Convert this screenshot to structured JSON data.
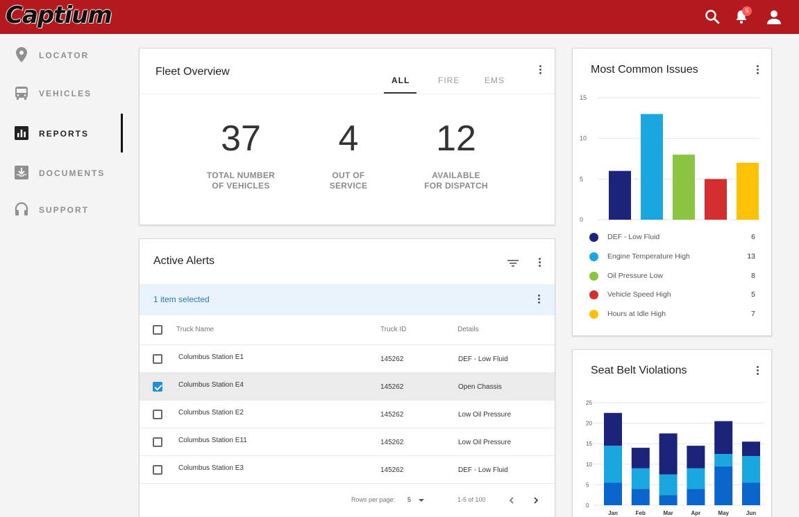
{
  "header": {
    "logo": "Captium",
    "notification_count": "5",
    "icons": [
      "search-icon",
      "bell-icon",
      "user-icon"
    ],
    "brand_color": "#b4191d"
  },
  "sidebar": {
    "items": [
      {
        "label": "LOCATOR",
        "icon": "map-pin-icon",
        "active": false
      },
      {
        "label": "VEHICLES",
        "icon": "bus-icon",
        "active": false
      },
      {
        "label": "REPORTS",
        "icon": "bar-chart-icon",
        "active": true
      },
      {
        "label": "DOCUMENTS",
        "icon": "inbox-icon",
        "active": false
      },
      {
        "label": "SUPPORT",
        "icon": "headset-icon",
        "active": false
      }
    ]
  },
  "fleet_overview": {
    "title": "Fleet Overview",
    "tabs": [
      {
        "label": "ALL",
        "active": true
      },
      {
        "label": "FIRE",
        "active": false
      },
      {
        "label": "EMS",
        "active": false
      }
    ],
    "stats": [
      {
        "value": "37",
        "label_line1": "TOTAL NUMBER",
        "label_line2": "OF VEHICLES"
      },
      {
        "value": "4",
        "label_line1": "OUT OF",
        "label_line2": "SERVICE"
      },
      {
        "value": "12",
        "label_line1": "AVAILABLE",
        "label_line2": "FOR DISPATCH"
      }
    ]
  },
  "active_alerts": {
    "title": "Active Alerts",
    "selected_text": "1 item selected",
    "columns": [
      "Truck Name",
      "Truck ID",
      "Details"
    ],
    "rows": [
      {
        "name": "Columbus Station E1",
        "id": "145262",
        "details": "DEF - Low Fluid",
        "checked": false
      },
      {
        "name": "Columbus Station E4",
        "id": "145262",
        "details": "Open Chassis",
        "checked": true
      },
      {
        "name": "Columbus Station E2",
        "id": "145262",
        "details": "Low Oil Pressure",
        "checked": false
      },
      {
        "name": "Columbus Station E11",
        "id": "145262",
        "details": "Low Oil Pressure",
        "checked": false
      },
      {
        "name": "Columbus Station E3",
        "id": "145262",
        "details": "DEF - Low Fluid",
        "checked": false
      }
    ],
    "pagination": {
      "rows_per_page_label": "Rows per page:",
      "rows_per_page": "5",
      "range": "1-5 of 100"
    }
  },
  "chart_data": [
    {
      "type": "bar",
      "title": "Most Common Issues",
      "categories": [
        "DEF -  Low Fluid",
        "Engine Temperature High",
        "Oil Pressure Low",
        "Vehicle Speed High",
        "Hours at Idle High"
      ],
      "values": [
        6,
        13,
        8,
        5,
        7
      ],
      "colors": [
        "#1c237a",
        "#1aa7e0",
        "#8bc440",
        "#d32f2f",
        "#ffc107"
      ],
      "ylim": [
        0,
        15
      ],
      "yticks": [
        0,
        5,
        10,
        15
      ],
      "grid": true,
      "legend": "bottom"
    },
    {
      "type": "bar",
      "stacked": true,
      "title": "Seat Belt Violations",
      "categories": [
        "Jan",
        "Feb",
        "Mar",
        "Apr",
        "May",
        "Jun"
      ],
      "series": [
        {
          "values": [
            5.5,
            4,
            2.5,
            4,
            9.5,
            5.5
          ],
          "color": "#0a66cc"
        },
        {
          "values": [
            9,
            5,
            5,
            5,
            3,
            6.5
          ],
          "color": "#1aa7e0"
        },
        {
          "values": [
            8,
            5,
            10,
            5.5,
            8,
            3.5
          ],
          "color": "#1c237a"
        }
      ],
      "ylim": [
        0,
        25
      ],
      "yticks": [
        0,
        5,
        10,
        15,
        20,
        25
      ],
      "grid": true
    }
  ]
}
